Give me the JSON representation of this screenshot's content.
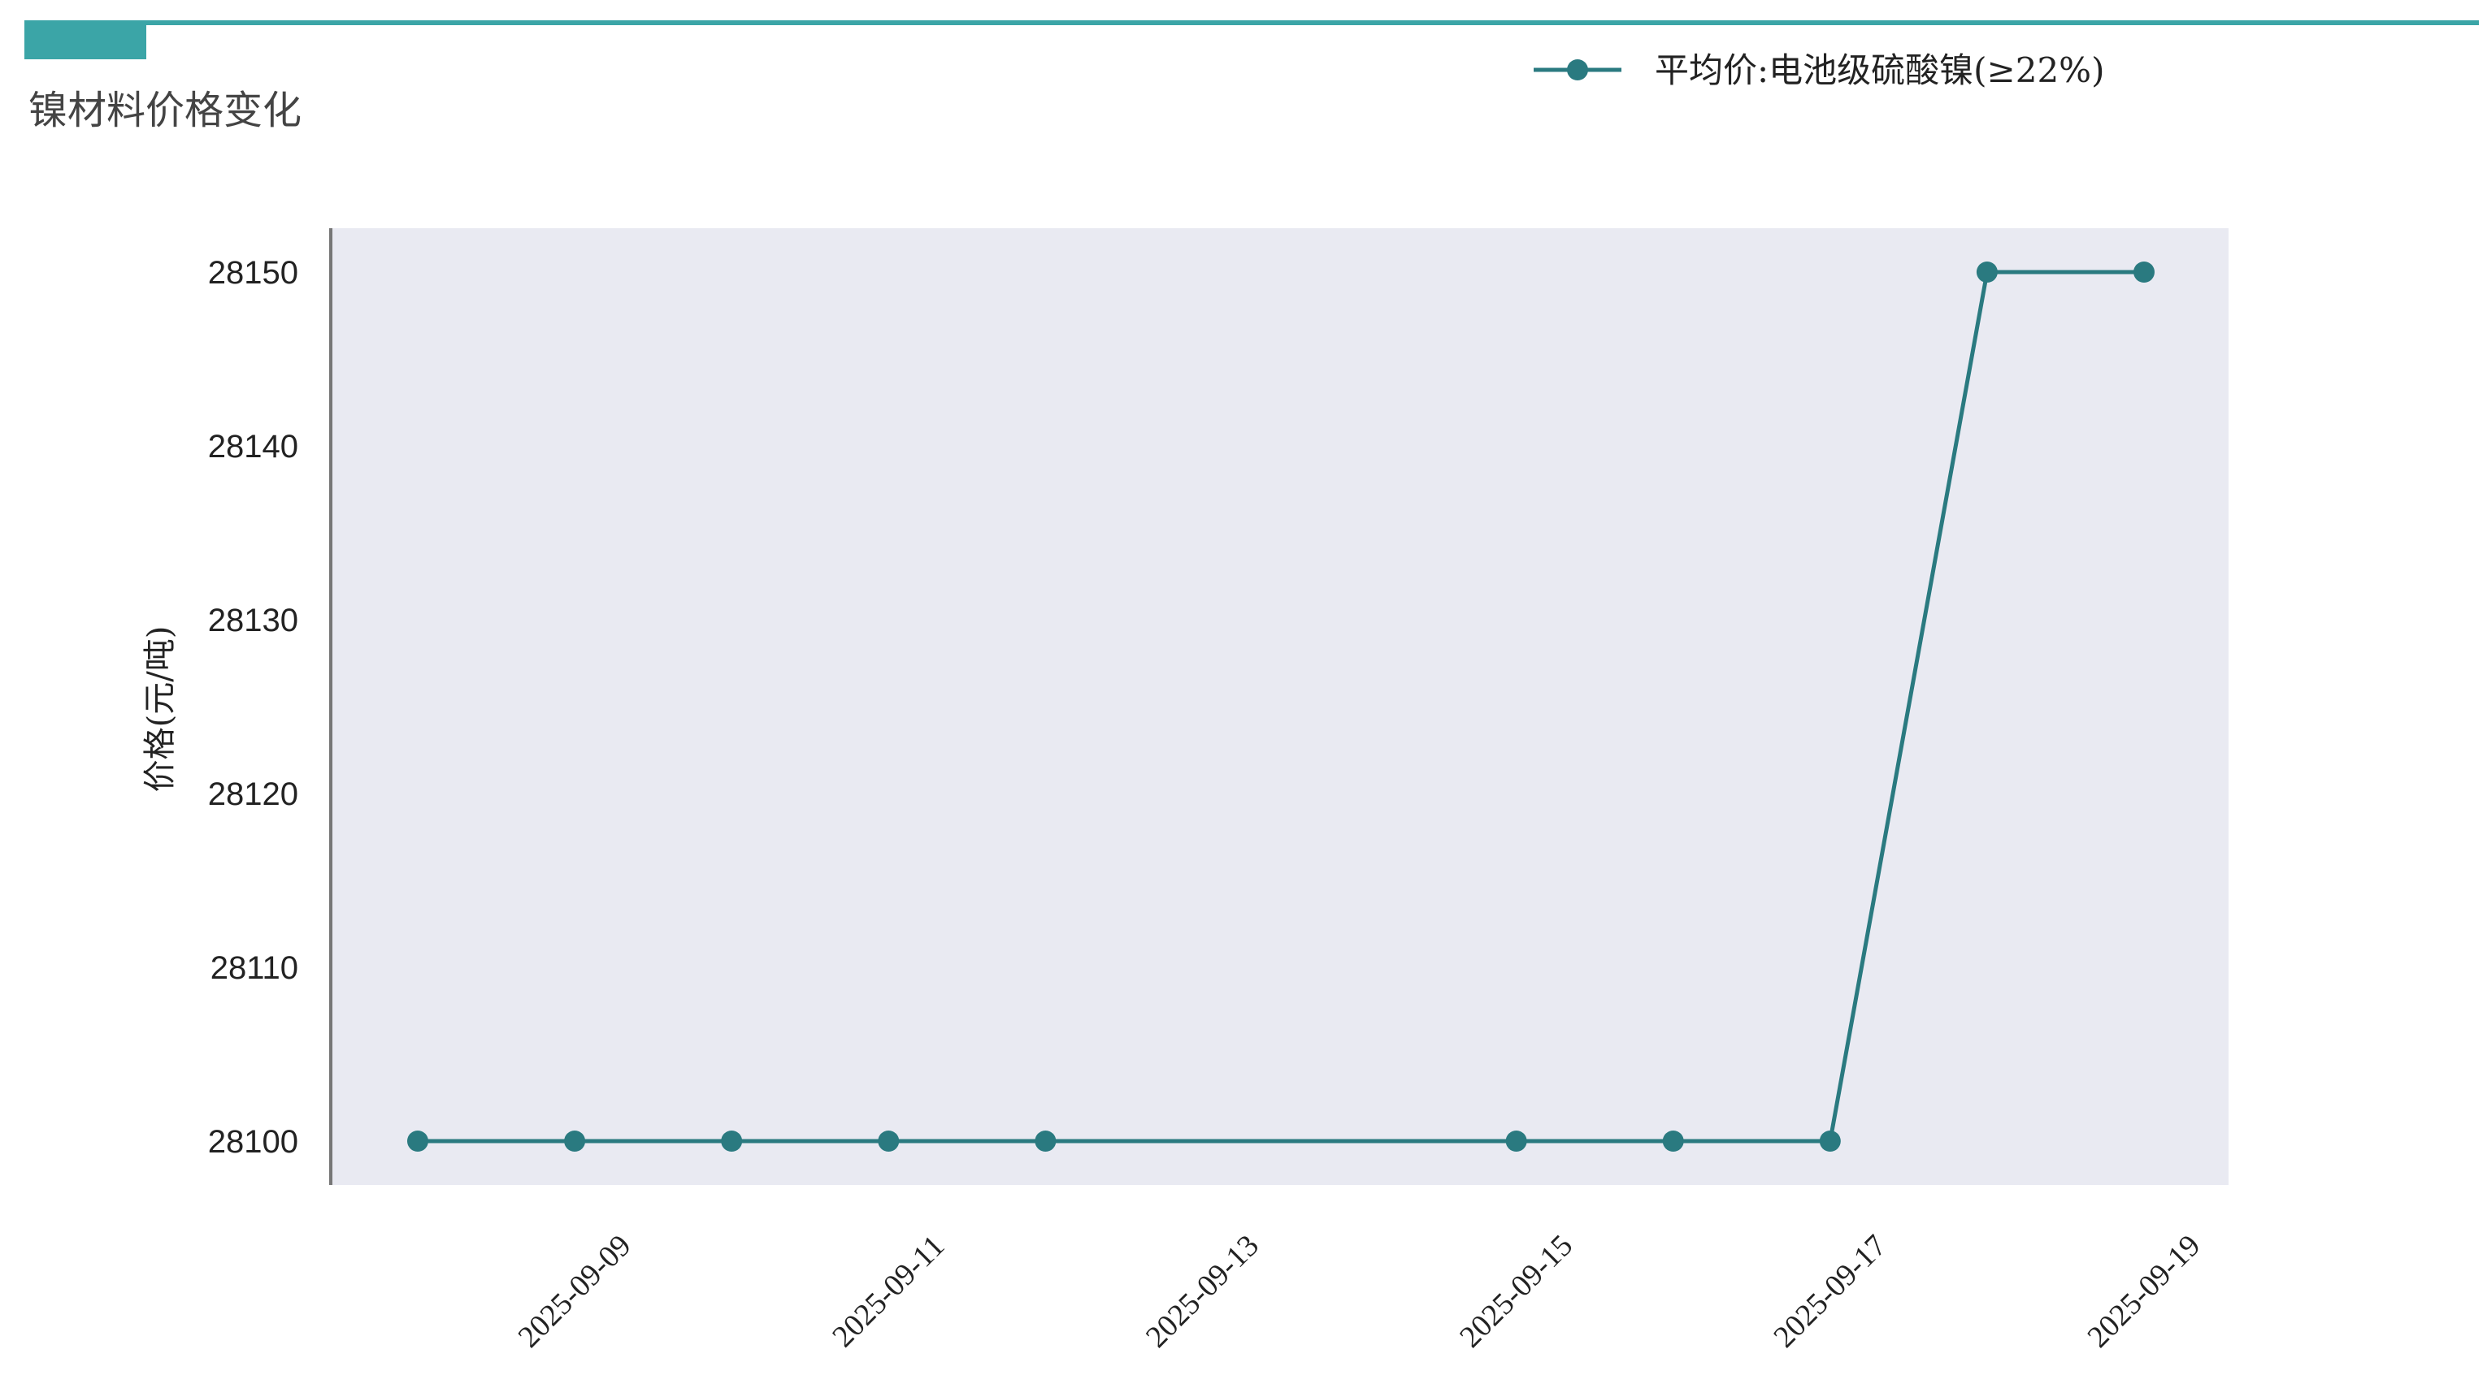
{
  "header": {
    "title": "镍材料价格变化",
    "accent_color": "#3ba5a7"
  },
  "chart_data": {
    "type": "line",
    "title": "镍材料价格变化",
    "xlabel": "",
    "ylabel": "价格(元/吨)",
    "x": [
      "2025-09-08",
      "2025-09-09",
      "2025-09-10",
      "2025-09-11",
      "2025-09-12",
      "2025-09-15",
      "2025-09-16",
      "2025-09-17",
      "2025-09-18",
      "2025-09-19"
    ],
    "series": [
      {
        "name": "平均价:电池级硫酸镍(≥22%)",
        "values": [
          28100,
          28100,
          28100,
          28100,
          28100,
          28100,
          28100,
          28100,
          28150,
          28150
        ],
        "color": "#2a7a80",
        "marker": "circle"
      }
    ],
    "xticks": [
      "2025-09-09",
      "2025-09-11",
      "2025-09-13",
      "2025-09-15",
      "2025-09-17",
      "2025-09-19"
    ],
    "yticks": [
      28100,
      28110,
      28120,
      28130,
      28140,
      28150
    ],
    "ylim": [
      28097.5,
      28152.5
    ],
    "xlim": [
      "2025-09-07T11:00",
      "2025-09-19T12:00"
    ],
    "grid": false,
    "background": "#e9eaf2",
    "legend_position": "top-right"
  }
}
